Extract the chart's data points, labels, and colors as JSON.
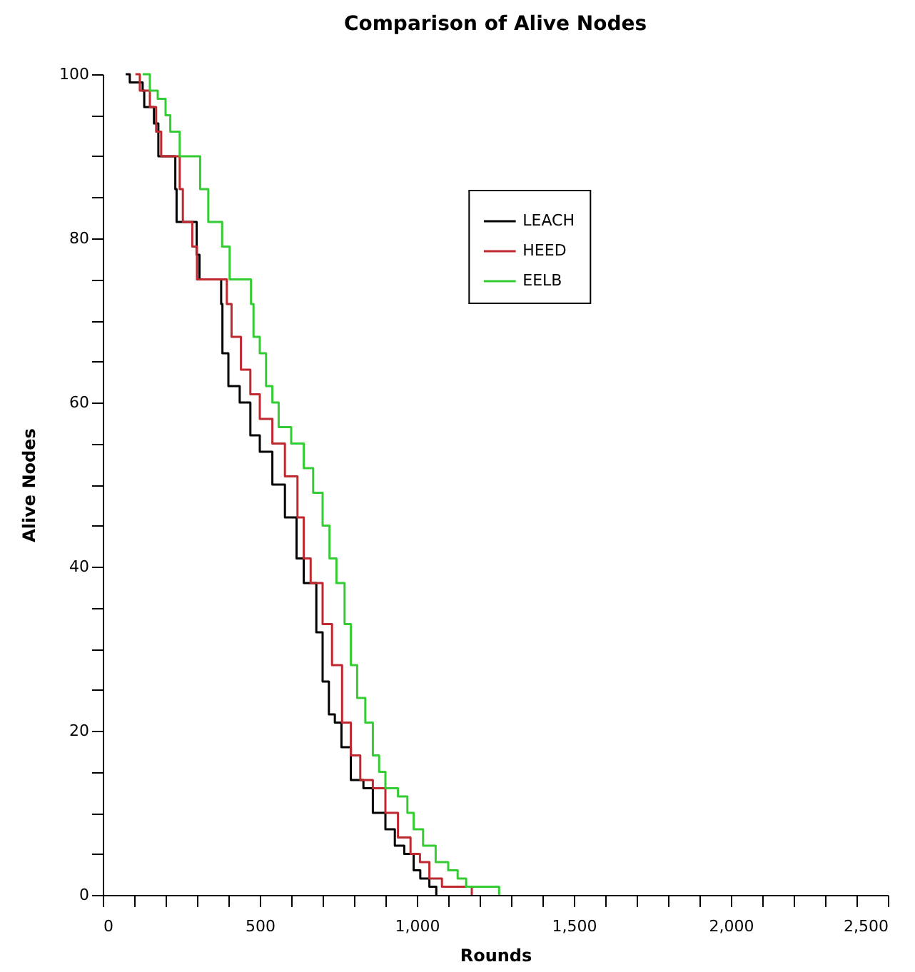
{
  "chart_data": {
    "type": "step",
    "title": "Comparison of Alive Nodes",
    "xlabel": "Rounds",
    "ylabel": "Alive Nodes",
    "xlim": [
      0,
      2500
    ],
    "ylim": [
      0,
      100
    ],
    "xticks": [
      0,
      {
        "value": 100,
        "label": null
      },
      {
        "value": 200,
        "label": null
      },
      {
        "value": 300,
        "label": null
      },
      {
        "value": 400,
        "label": null
      },
      500,
      {
        "value": 600,
        "label": null
      },
      {
        "value": 700,
        "label": null
      },
      {
        "value": 800,
        "label": null
      },
      {
        "value": 900,
        "label": null
      },
      {
        "value": 1000,
        "label": "1,000"
      },
      {
        "value": 1100,
        "label": null
      },
      {
        "value": 1200,
        "label": null
      },
      {
        "value": 1300,
        "label": null
      },
      {
        "value": 1400,
        "label": null
      },
      {
        "value": 1500,
        "label": "1,500"
      },
      {
        "value": 1600,
        "label": null
      },
      {
        "value": 1700,
        "label": null
      },
      {
        "value": 1800,
        "label": null
      },
      {
        "value": 1900,
        "label": null
      },
      {
        "value": 2000,
        "label": "2,000"
      },
      {
        "value": 2100,
        "label": null
      },
      {
        "value": 2200,
        "label": null
      },
      {
        "value": 2300,
        "label": null
      },
      {
        "value": 2400,
        "label": null
      },
      {
        "value": 2500,
        "label": "2,500"
      }
    ],
    "yticks": [
      0,
      {
        "value": 5,
        "label": null
      },
      {
        "value": 10,
        "label": null
      },
      {
        "value": 15,
        "label": null
      },
      20,
      {
        "value": 25,
        "label": null
      },
      {
        "value": 30,
        "label": null
      },
      {
        "value": 35,
        "label": null
      },
      40,
      {
        "value": 45,
        "label": null
      },
      {
        "value": 50,
        "label": null
      },
      {
        "value": 55,
        "label": null
      },
      60,
      {
        "value": 65,
        "label": null
      },
      {
        "value": 70,
        "label": null
      },
      {
        "value": 75,
        "label": null
      },
      80,
      {
        "value": 85,
        "label": null
      },
      {
        "value": 90,
        "label": null
      },
      {
        "value": 95,
        "label": null
      },
      100
    ],
    "grid": false,
    "legend": "top right",
    "marker": "none",
    "line_style": "solid",
    "series": [
      {
        "name": "LEACH",
        "color": "#000000",
        "x": [
          73,
          86,
          127,
          132,
          163,
          177,
          231,
          235,
          299,
          308,
          377,
          381,
          400,
          436,
          470,
          500,
          540,
          580,
          617,
          640,
          680,
          700,
          720,
          739,
          760,
          790,
          830,
          860,
          900,
          930,
          960,
          990,
          1011,
          1040,
          1062
        ],
        "values": [
          100,
          99,
          98,
          96,
          94,
          90,
          86,
          82,
          78,
          75,
          72,
          66,
          62,
          60,
          56,
          54,
          50,
          46,
          41,
          38,
          32,
          26,
          22,
          21,
          18,
          14,
          13,
          10,
          8,
          6,
          5,
          3,
          2,
          1,
          0
        ]
      },
      {
        "name": "HEED",
        "color": "#c0282f",
        "x": [
          104,
          118,
          150,
          170,
          186,
          245,
          255,
          285,
          300,
          395,
          410,
          440,
          470,
          500,
          540,
          580,
          620,
          640,
          662,
          700,
          730,
          762,
          790,
          820,
          860,
          900,
          940,
          980,
          1010,
          1040,
          1080,
          1175
        ],
        "values": [
          100,
          98,
          96,
          93,
          90,
          86,
          82,
          79,
          75,
          72,
          68,
          64,
          61,
          58,
          55,
          51,
          46,
          41,
          38,
          33,
          28,
          21,
          17,
          14,
          13,
          10,
          7,
          5,
          4,
          2,
          1,
          0
        ]
      },
      {
        "name": "EELB",
        "color": "#33cc33",
        "x": [
          127,
          150,
          175,
          200,
          215,
          245,
          310,
          336,
          380,
          404,
          472,
          480,
          500,
          520,
          540,
          560,
          600,
          640,
          670,
          700,
          722,
          744,
          770,
          790,
          810,
          836,
          860,
          880,
          900,
          940,
          970,
          990,
          1020,
          1060,
          1100,
          1130,
          1157,
          1262
        ],
        "values": [
          100,
          98,
          97,
          95,
          93,
          90,
          86,
          82,
          79,
          75,
          72,
          68,
          66,
          62,
          60,
          57,
          55,
          52,
          49,
          45,
          41,
          38,
          33,
          28,
          24,
          21,
          17,
          15,
          13,
          12,
          10,
          8,
          6,
          4,
          3,
          2,
          1,
          0
        ]
      }
    ]
  }
}
